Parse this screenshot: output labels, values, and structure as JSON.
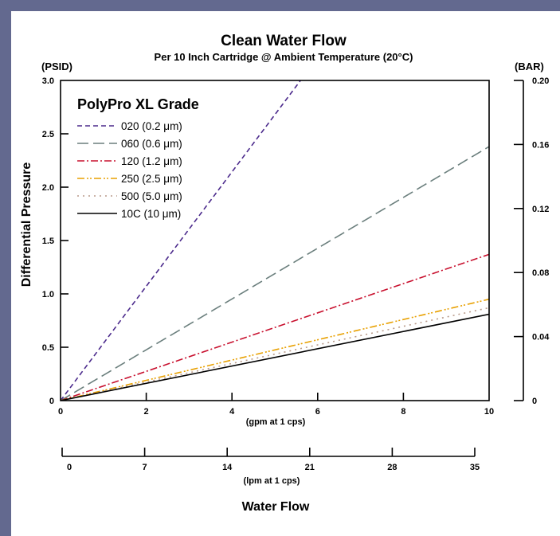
{
  "chart_data": {
    "type": "line",
    "title": "Clean Water Flow",
    "subtitle": "Per 10 Inch Cartridge @ Ambient Temperature (20°C)",
    "ylabel": "Differential Pressure",
    "y_unit_left": "(PSID)",
    "y_unit_right": "(BAR)",
    "xlabel": "Water Flow",
    "x_sublabel_gpm": "(gpm at 1 cps)",
    "x_sublabel_lpm": "(lpm at 1 cps)",
    "xlim": [
      0,
      10
    ],
    "ylim": [
      0,
      3.0
    ],
    "x_ticks": [
      "0",
      "2",
      "4",
      "6",
      "8",
      "10"
    ],
    "y_ticks": [
      "0",
      "0.5",
      "1.0",
      "1.5",
      "2.0",
      "2.5",
      "3.0"
    ],
    "bar_ticks": [
      "0",
      "0.04",
      "0.08",
      "0.12",
      "0.16",
      "0.20"
    ],
    "lpm_ticks": [
      "0",
      "7",
      "14",
      "21",
      "28",
      "35"
    ],
    "legend_title": "PolyPro XL Grade",
    "legend_position": "top-left",
    "grid": false,
    "series": [
      {
        "name": "020 (0.2 μm)",
        "color": "#4b2a8c",
        "dash": "short-dash",
        "x": [
          0,
          5.6
        ],
        "y": [
          0,
          3.0
        ]
      },
      {
        "name": "060 (0.6 μm)",
        "color": "#6b7f7d",
        "dash": "long-dash",
        "x": [
          0,
          10
        ],
        "y": [
          0,
          2.38
        ]
      },
      {
        "name": "120 (1.2 μm)",
        "color": "#c8102e",
        "dash": "dash-dot",
        "x": [
          0,
          10
        ],
        "y": [
          0,
          1.37
        ]
      },
      {
        "name": "250 (2.5 μm)",
        "color": "#e8a000",
        "dash": "dash-dot-dot",
        "x": [
          0,
          10
        ],
        "y": [
          0,
          0.95
        ]
      },
      {
        "name": "500 (5.0 μm)",
        "color": "#b89a8a",
        "dash": "dotted",
        "x": [
          0,
          10
        ],
        "y": [
          0,
          0.87
        ]
      },
      {
        "name": "10C (10 μm)",
        "color": "#000000",
        "dash": "solid",
        "x": [
          0,
          10
        ],
        "y": [
          0,
          0.81
        ]
      }
    ]
  }
}
